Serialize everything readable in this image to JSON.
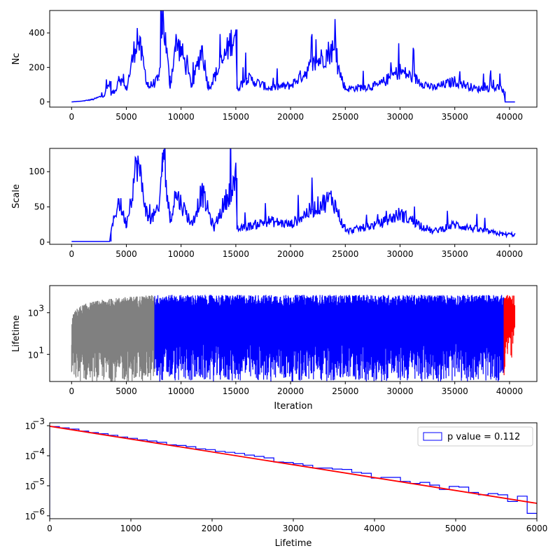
{
  "chart_data": [
    {
      "type": "line",
      "ylabel": "Nc",
      "xlabel": "",
      "xlim": [
        -2000,
        42500
      ],
      "ylim": [
        -30,
        530
      ],
      "xticks": [
        0,
        5000,
        10000,
        15000,
        20000,
        25000,
        30000,
        35000,
        40000
      ],
      "yticks": [
        0,
        200,
        400
      ],
      "series": [
        {
          "color": "#0000ff",
          "x": [
            0,
            1000,
            2000,
            3000,
            3500,
            3600,
            4000,
            4300,
            5000,
            6000,
            7000,
            8000,
            8300,
            9000,
            9500,
            10000,
            11000,
            11900,
            12500,
            13800,
            15000,
            15100,
            16000,
            18000,
            20000,
            22000,
            23800,
            25000,
            28000,
            30000,
            33000,
            35000,
            37000,
            39000,
            39500,
            39600,
            40500
          ],
          "y": [
            0,
            5,
            15,
            40,
            120,
            50,
            60,
            150,
            70,
            385,
            85,
            130,
            520,
            90,
            340,
            300,
            90,
            315,
            80,
            235,
            420,
            75,
            140,
            80,
            95,
            210,
            305,
            75,
            95,
            180,
            80,
            120,
            75,
            85,
            60,
            0,
            0
          ]
        }
      ]
    },
    {
      "type": "line",
      "ylabel": "Scale",
      "xlabel": "",
      "xlim": [
        -2000,
        42500
      ],
      "ylim": [
        -3,
        133
      ],
      "xticks": [
        0,
        5000,
        10000,
        15000,
        20000,
        25000,
        30000,
        35000,
        40000
      ],
      "yticks": [
        0,
        50,
        100
      ],
      "series": [
        {
          "color": "#0000ff",
          "x": [
            0,
            3500,
            3600,
            4300,
            5000,
            6000,
            7000,
            8000,
            8300,
            9000,
            9500,
            10000,
            11000,
            11900,
            13000,
            13800,
            15000,
            15100,
            18000,
            20000,
            22000,
            23800,
            25000,
            28000,
            30000,
            33000,
            35000,
            38000,
            39500,
            40500
          ],
          "y": [
            1,
            1,
            15,
            60,
            25,
            116,
            30,
            45,
            127,
            30,
            70,
            55,
            25,
            71,
            20,
            50,
            91,
            18,
            30,
            25,
            47,
            63,
            15,
            25,
            40,
            15,
            25,
            15,
            11,
            11
          ]
        }
      ]
    },
    {
      "type": "line",
      "ylabel": "Lifetime",
      "xlabel": "Iteration",
      "yscale": "log",
      "xlim": [
        -2000,
        42500
      ],
      "ylim": [
        0.5,
        20000
      ],
      "xticks": [
        0,
        5000,
        10000,
        15000,
        20000,
        25000,
        30000,
        35000,
        40000
      ],
      "yticks": [
        10,
        1000
      ],
      "series": [
        {
          "color": "#808080",
          "x": [
            0,
            7600
          ],
          "y_min": [
            0.5,
            0.5
          ],
          "y_max": [
            1,
            6000
          ]
        },
        {
          "color": "#0000ff",
          "x": [
            7600,
            39500
          ],
          "y_min": [
            0.5,
            0.5
          ],
          "y_max": [
            6000,
            6000
          ]
        },
        {
          "color": "#ff0000",
          "x": [
            39500,
            40500
          ],
          "y_min": [
            1,
            300
          ],
          "y_max": [
            6000,
            6000
          ]
        }
      ]
    },
    {
      "type": "histogram",
      "ylabel": "",
      "xlabel": "Lifetime",
      "yscale": "log",
      "xlim": [
        0,
        6000
      ],
      "ylim": [
        8e-07,
        0.00125
      ],
      "xticks": [
        0,
        1000,
        2000,
        3000,
        4000,
        5000,
        6000
      ],
      "ytick_exponents": [
        -6,
        -5,
        -4,
        -3
      ],
      "legend": {
        "label": "p value = 0.112",
        "loc": "upper right"
      },
      "bins": {
        "color": "#0000ff",
        "edges": [
          0,
          120,
          240,
          360,
          480,
          600,
          720,
          840,
          960,
          1080,
          1200,
          1320,
          1440,
          1560,
          1680,
          1800,
          1920,
          2040,
          2160,
          2280,
          2400,
          2520,
          2640,
          2760,
          2880,
          3000,
          3120,
          3240,
          3360,
          3480,
          3600,
          3720,
          3840,
          3960,
          4080,
          4200,
          4320,
          4440,
          4560,
          4680,
          4800,
          4920,
          5040,
          5160,
          5280,
          5400,
          5520,
          5640,
          5760,
          5880,
          6000
        ],
        "values": [
          0.00094,
          0.00085,
          0.00077,
          0.00066,
          0.00059,
          0.00054,
          0.00048,
          0.00042,
          0.00038,
          0.00034,
          0.00031,
          0.00028,
          0.00023,
          0.00022,
          0.0002,
          0.00017,
          0.00016,
          0.00014,
          0.00013,
          0.00012,
          0.000105,
          9.5e-05,
          8.5e-05,
          6.2e-05,
          6e-05,
          5.4e-05,
          4.8e-05,
          3.9e-05,
          3.9e-05,
          3.6e-05,
          3.5e-05,
          2.8e-05,
          2.6e-05,
          1.8e-05,
          1.9e-05,
          1.9e-05,
          1.4e-05,
          1.2e-05,
          1.3e-05,
          1.05e-05,
          7.5e-06,
          9.5e-06,
          9e-06,
          6e-06,
          5e-06,
          5.5e-06,
          5e-06,
          3e-06,
          4.5e-06,
          1.2e-06
        ]
      },
      "fit": {
        "color": "#ff0000",
        "x": [
          0,
          6000
        ],
        "y": [
          0.00096,
          2.6e-06
        ]
      }
    }
  ]
}
